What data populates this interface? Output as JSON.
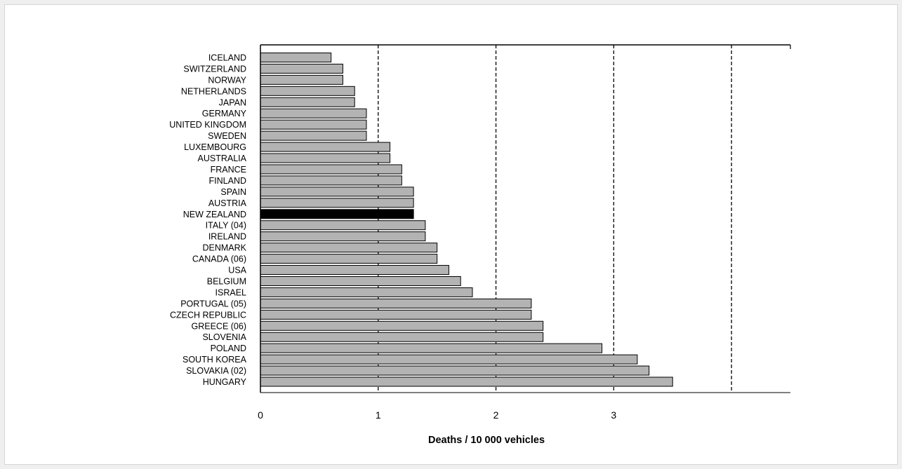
{
  "chart_data": {
    "type": "bar",
    "orientation": "horizontal",
    "xlabel": "Deaths / 10 000 vehicles",
    "xlim": [
      0,
      4.5
    ],
    "x_ticks": [
      0,
      1,
      2,
      3
    ],
    "gridlines": [
      1,
      2,
      3,
      4
    ],
    "grid": "dashed vertical",
    "categories": [
      "ICELAND",
      "SWITZERLAND",
      "NORWAY",
      "NETHERLANDS",
      "JAPAN",
      "GERMANY",
      "UNITED KINGDOM",
      "SWEDEN",
      "LUXEMBOURG",
      "AUSTRALIA",
      "FRANCE",
      "FINLAND",
      "SPAIN",
      "AUSTRIA",
      "NEW ZEALAND",
      "ITALY (04)",
      "IRELAND",
      "DENMARK",
      "CANADA  (06)",
      "USA",
      "BELGIUM",
      "ISRAEL",
      "PORTUGAL (05)",
      "CZECH REPUBLIC",
      "GREECE  (06)",
      "SLOVENIA",
      "POLAND",
      "SOUTH KOREA",
      "SLOVAKIA (02)",
      "HUNGARY"
    ],
    "values": [
      0.6,
      0.7,
      0.7,
      0.8,
      0.8,
      0.9,
      0.9,
      0.9,
      1.1,
      1.1,
      1.2,
      1.2,
      1.3,
      1.3,
      1.3,
      1.4,
      1.4,
      1.5,
      1.5,
      1.6,
      1.7,
      1.8,
      2.3,
      2.3,
      2.4,
      2.4,
      2.9,
      3.2,
      3.3,
      3.5
    ],
    "highlight": "NEW ZEALAND",
    "colors": {
      "bar": "#b3b3b3",
      "highlight": "#000000",
      "outline": "#000000"
    }
  }
}
